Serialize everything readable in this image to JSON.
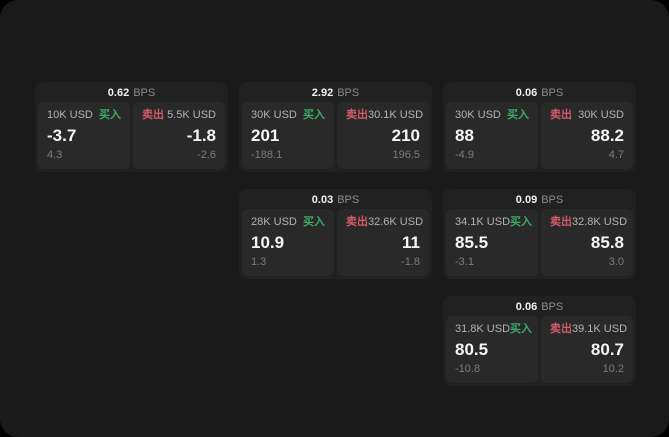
{
  "labels": {
    "buy": "买入",
    "sell": "卖出",
    "bps_unit": "BPS"
  },
  "colors": {
    "buy_green": "#3caa68",
    "sell_red": "#d15a68",
    "screen_bg": "#1a1a1a",
    "card_bg": "#212121",
    "panel_bg": "#292929"
  },
  "cards": [
    {
      "row": 1,
      "col": 1,
      "bps": "0.62",
      "buy": {
        "amount": "10K USD",
        "value": "-3.7",
        "delta": "4.3"
      },
      "sell": {
        "amount": "5.5K USD",
        "value": "-1.8",
        "delta": "-2.6"
      }
    },
    {
      "row": 1,
      "col": 2,
      "bps": "2.92",
      "buy": {
        "amount": "30K USD",
        "value": "201",
        "delta": "-188.1"
      },
      "sell": {
        "amount": "30.1K USD",
        "value": "210",
        "delta": "196.5"
      }
    },
    {
      "row": 1,
      "col": 3,
      "bps": "0.06",
      "buy": {
        "amount": "30K USD",
        "value": "88",
        "delta": "-4.9"
      },
      "sell": {
        "amount": "30K USD",
        "value": "88.2",
        "delta": "4.7"
      }
    },
    {
      "row": 2,
      "col": 2,
      "bps": "0.03",
      "buy": {
        "amount": "28K USD",
        "value": "10.9",
        "delta": "1.3"
      },
      "sell": {
        "amount": "32.6K USD",
        "value": "11",
        "delta": "-1.8"
      }
    },
    {
      "row": 2,
      "col": 3,
      "bps": "0.09",
      "buy": {
        "amount": "34.1K USD",
        "value": "85.5",
        "delta": "-3.1"
      },
      "sell": {
        "amount": "32.8K USD",
        "value": "85.8",
        "delta": "3.0"
      }
    },
    {
      "row": 3,
      "col": 3,
      "bps": "0.06",
      "buy": {
        "amount": "31.8K USD",
        "value": "80.5",
        "delta": "-10.8"
      },
      "sell": {
        "amount": "39.1K USD",
        "value": "80.7",
        "delta": "10.2"
      }
    }
  ]
}
